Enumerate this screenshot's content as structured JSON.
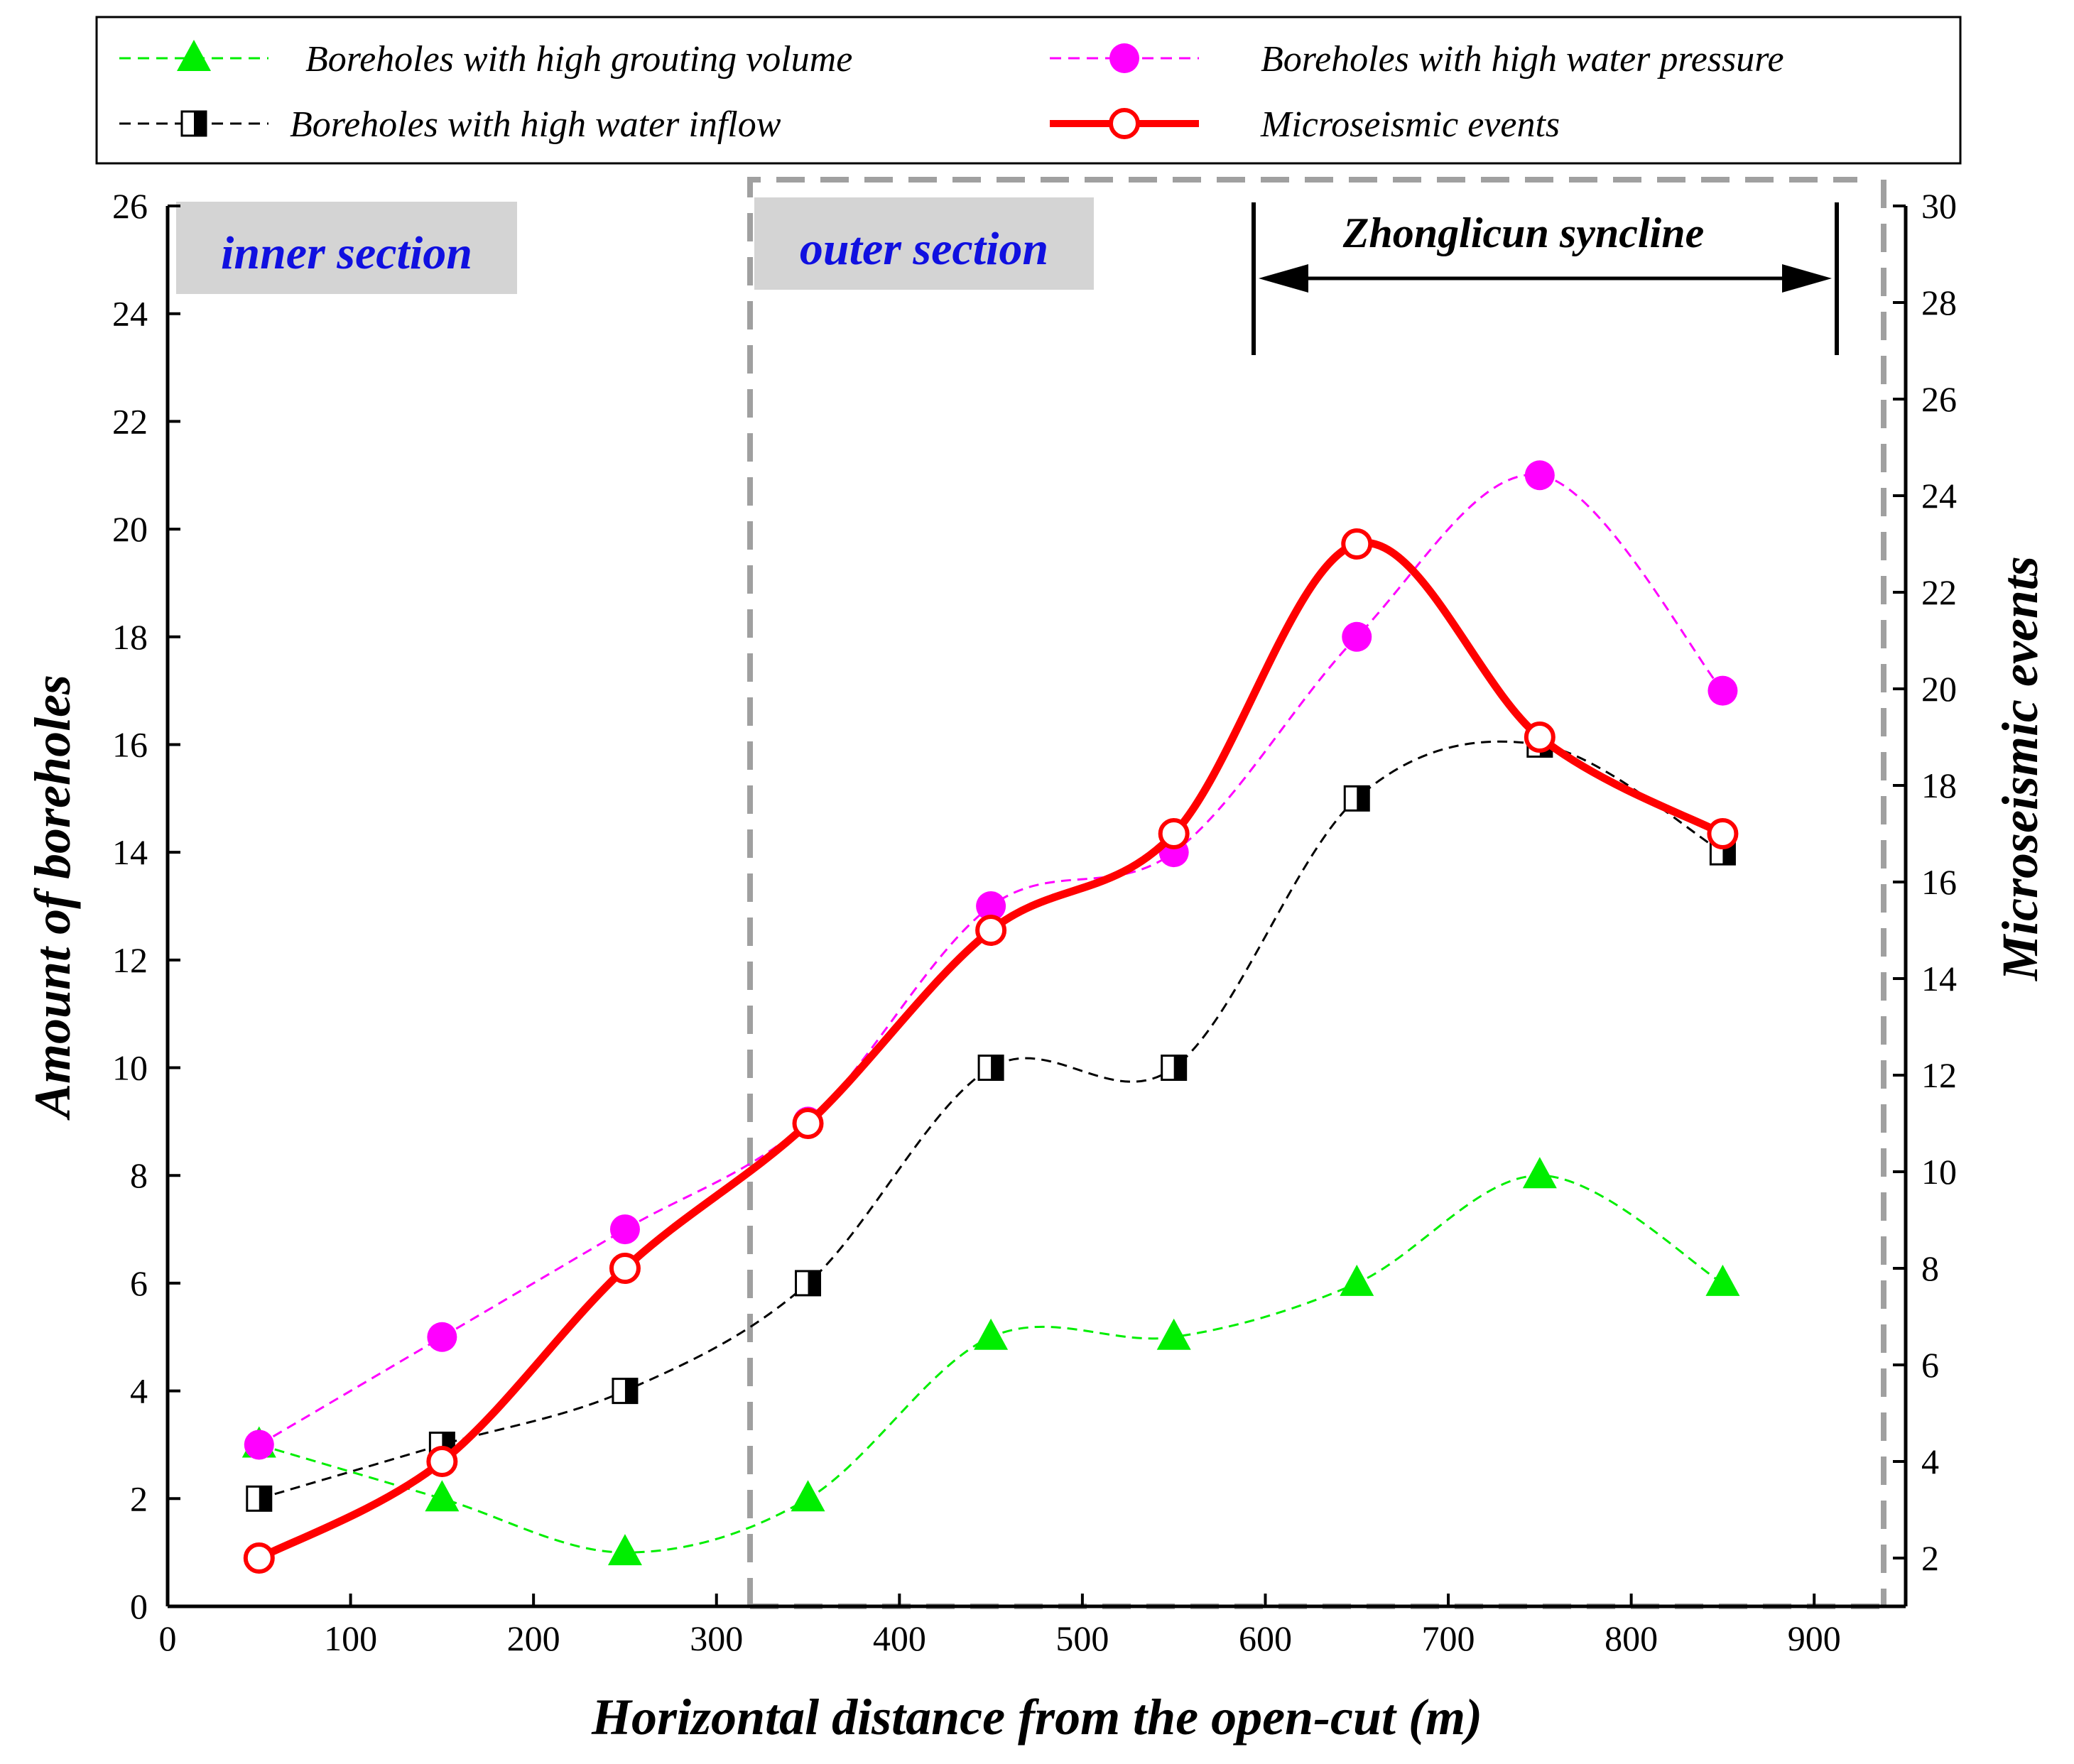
{
  "chart_data": {
    "type": "line",
    "xlabel": "Horizontal distance from the open-cut (m)",
    "ylabel": "Amount of boreholes",
    "y2label": "Microseismic events",
    "xlim": [
      0,
      950
    ],
    "ylim": [
      0,
      26
    ],
    "y2lim": [
      1,
      30
    ],
    "xticks": [
      0,
      100,
      200,
      300,
      400,
      500,
      600,
      700,
      800,
      900
    ],
    "yticks": [
      0,
      2,
      4,
      6,
      8,
      10,
      12,
      14,
      16,
      18,
      20,
      22,
      24,
      26
    ],
    "y2ticks": [
      2,
      4,
      6,
      8,
      10,
      12,
      14,
      16,
      18,
      20,
      22,
      24,
      26,
      28,
      30
    ],
    "x": [
      50,
      150,
      250,
      350,
      450,
      550,
      650,
      750,
      850
    ],
    "series": [
      {
        "name": "Boreholes with high grouting volume",
        "axis": "left",
        "color": "#00ee00",
        "marker": "triangle",
        "values": [
          3,
          2,
          1,
          2,
          5,
          5,
          6,
          8,
          6
        ]
      },
      {
        "name": "Boreholes with high water pressure",
        "axis": "left",
        "color": "#ff00ff",
        "marker": "circle",
        "values": [
          3,
          5,
          7,
          9,
          13,
          14,
          18,
          21,
          17
        ]
      },
      {
        "name": "Boreholes with high water inflow",
        "axis": "left",
        "color": "#000000",
        "marker": "half-square",
        "values": [
          2,
          3,
          4,
          6,
          10,
          10,
          15,
          16,
          14
        ]
      },
      {
        "name": "Microseismic events",
        "axis": "right",
        "color": "#ff0000",
        "marker": "open-circle",
        "values": [
          2,
          4,
          8,
          11,
          15,
          17,
          23,
          19,
          17
        ]
      }
    ],
    "regions": [
      {
        "label": "inner section"
      },
      {
        "label": "outer section",
        "x_start": 318
      }
    ],
    "annotations": [
      {
        "label": "Zhonglicun syncline",
        "x_from": 595,
        "x_to": 912
      }
    ],
    "legend_position": "top"
  }
}
